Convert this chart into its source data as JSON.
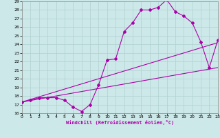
{
  "xlabel": "Windchill (Refroidissement éolien,°C)",
  "bg_color": "#cde8e8",
  "grid_color": "#b0d0d0",
  "line_color": "#aa00aa",
  "x_min": 0,
  "x_max": 23,
  "y_min": 16,
  "y_max": 29,
  "curve1_x": [
    0,
    1,
    2,
    3,
    4,
    5,
    6,
    7,
    8,
    9,
    10,
    11,
    12,
    13,
    14,
    15,
    16,
    17,
    18,
    19,
    20,
    21,
    22,
    23
  ],
  "curve1_y": [
    17.3,
    17.5,
    17.8,
    17.8,
    17.8,
    17.5,
    16.7,
    16.2,
    17.0,
    19.3,
    22.2,
    22.3,
    25.5,
    26.5,
    28.0,
    28.0,
    28.3,
    29.2,
    27.8,
    27.3,
    26.5,
    24.3,
    21.3,
    24.5
  ],
  "curve2_x": [
    0,
    1,
    2,
    3,
    4,
    5,
    6,
    7,
    8,
    9,
    10,
    11,
    12,
    13,
    14,
    15,
    16,
    17,
    18,
    19,
    20,
    21,
    22,
    23
  ],
  "curve2_y": [
    17.3,
    17.6,
    17.9,
    18.2,
    18.5,
    18.8,
    19.1,
    19.4,
    19.7,
    20.0,
    20.3,
    20.6,
    20.9,
    21.2,
    21.5,
    21.8,
    22.1,
    22.4,
    22.7,
    23.0,
    23.3,
    23.6,
    23.9,
    24.2
  ],
  "line_x": [
    0,
    23
  ],
  "line_y": [
    17.3,
    21.3
  ]
}
